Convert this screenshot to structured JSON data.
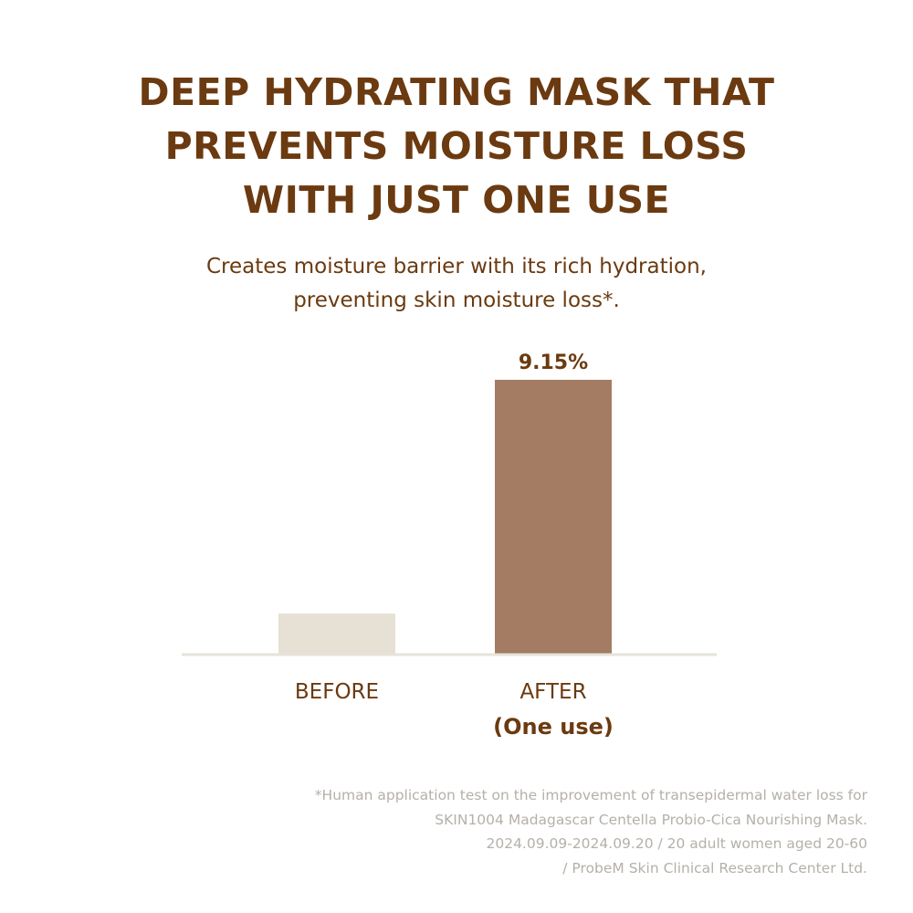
{
  "title_lines": [
    "DEEP HYDRATING MASK THAT",
    "PREVENTS MOISTURE LOSS",
    "WITH JUST ONE USE"
  ],
  "subtitle_lines": [
    "Creates moisture barrier with its rich hydration,",
    "preventing skin moisture loss*."
  ],
  "chart_data": {
    "type": "bar",
    "categories": [
      "BEFORE",
      "AFTER"
    ],
    "category_sublabels": [
      "",
      "(One use)"
    ],
    "values": [
      1.34,
      9.15
    ],
    "data_labels": [
      "",
      "9.15%"
    ],
    "colors": [
      "#e6e1d4",
      "#a37c63"
    ],
    "axis_color": "#e6e3da",
    "grid": false
  },
  "footnote_lines": [
    "*Human application test on the improvement of transepidermal water loss for",
    "SKIN1004 Madagascar Centella Probio-Cica Nourishing Mask.",
    "2024.09.09-2024.09.20 / 20 adult women aged 20-60",
    "/ ProbeM Skin Clinical Research Center Ltd."
  ],
  "colors": {
    "text": "#6b3a10",
    "footnote": "#b5b0aa"
  }
}
